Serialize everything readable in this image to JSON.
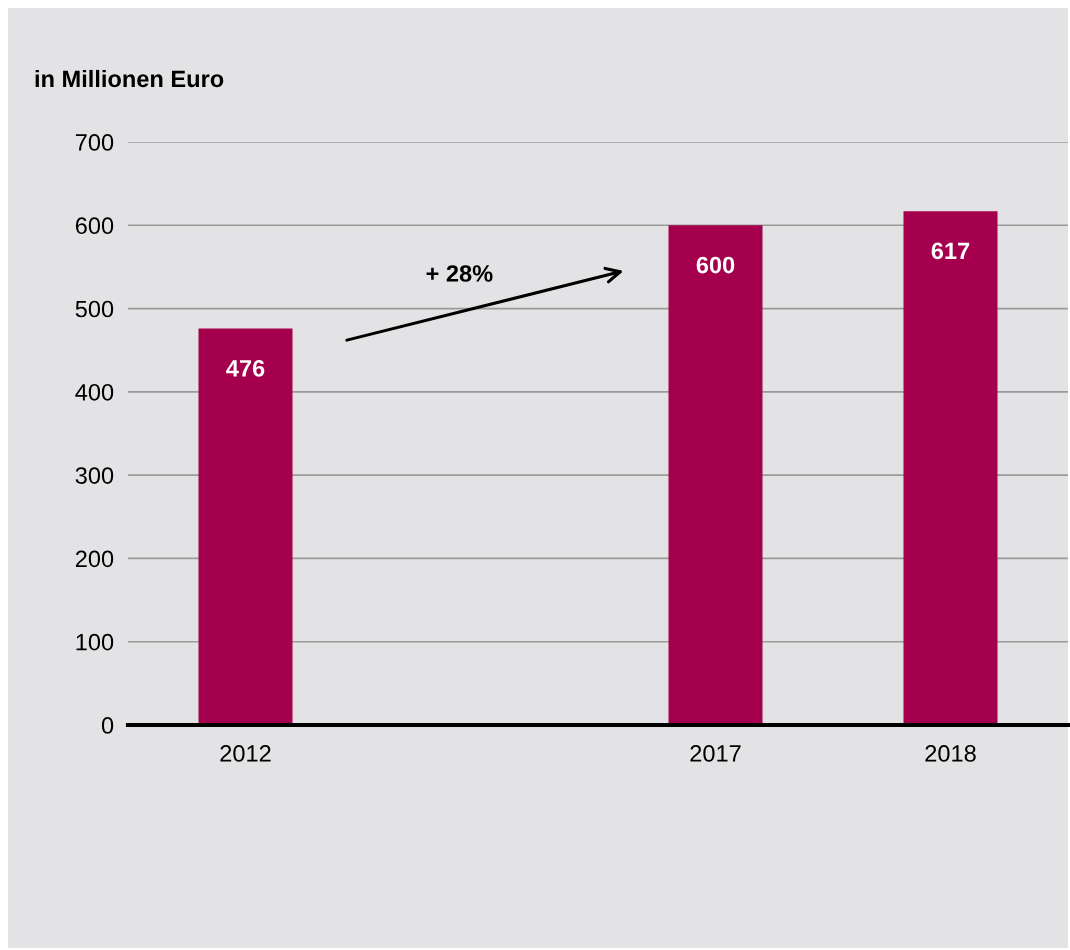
{
  "chart_data": {
    "type": "bar",
    "title": "in Millionen Euro",
    "categories": [
      "2012",
      null,
      "2017",
      "2018"
    ],
    "values": [
      476,
      null,
      600,
      617
    ],
    "color": "#a5004d",
    "ylim": [
      0,
      700
    ],
    "yticks": [
      0,
      100,
      200,
      300,
      400,
      500,
      600,
      700
    ],
    "grid": "y",
    "data_labels": true,
    "annotations": [
      "+ 28%"
    ]
  }
}
